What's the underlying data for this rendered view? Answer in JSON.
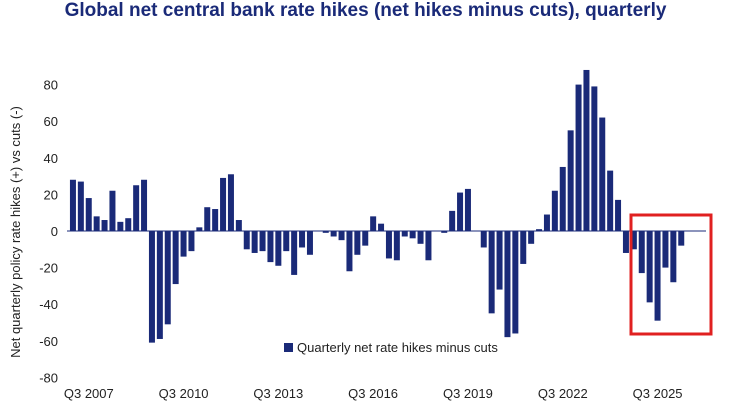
{
  "chart_data": {
    "type": "bar",
    "title": "Global net central bank rate hikes (net hikes minus cuts), quarterly",
    "ylabel": "Net quarterly policy rate hikes (+) vs cuts (-)",
    "xlabel": "",
    "ylim": [
      -80,
      90
    ],
    "yticks": [
      80,
      60,
      40,
      20,
      0,
      -20,
      -40,
      -60,
      -80
    ],
    "x_tick_labels": [
      "Q3 2007",
      "Q3 2010",
      "Q3 2013",
      "Q3 2016",
      "Q3 2019",
      "Q3 2022",
      "Q3 2025"
    ],
    "series": [
      {
        "name": "Quarterly net rate hikes minus cuts",
        "color": "#1a2a78",
        "values": [
          28,
          27,
          18,
          8,
          6,
          22,
          5,
          7,
          25,
          28,
          -61,
          -59,
          -51,
          -29,
          -14,
          -11,
          2,
          13,
          12,
          29,
          31,
          6,
          -10,
          -12,
          -11,
          -17,
          -19,
          -11,
          -24,
          -9,
          -13,
          0,
          -1,
          -3,
          -5,
          -22,
          -13,
          -8,
          8,
          4,
          -15,
          -16,
          -3,
          -4,
          -7,
          -16,
          0,
          -1,
          11,
          21,
          23,
          0,
          -9,
          -45,
          -32,
          -58,
          -56,
          -18,
          -7,
          1,
          9,
          22,
          35,
          55,
          80,
          88,
          79,
          62,
          33,
          17,
          -12,
          -10,
          -23,
          -39,
          -49,
          -20,
          -28,
          -8
        ]
      }
    ],
    "legend": {
      "label": "Quarterly net rate hikes minus cuts",
      "position": "bottom-center"
    },
    "highlight": {
      "description": "box around recent cuts",
      "color": "#e02020"
    }
  }
}
